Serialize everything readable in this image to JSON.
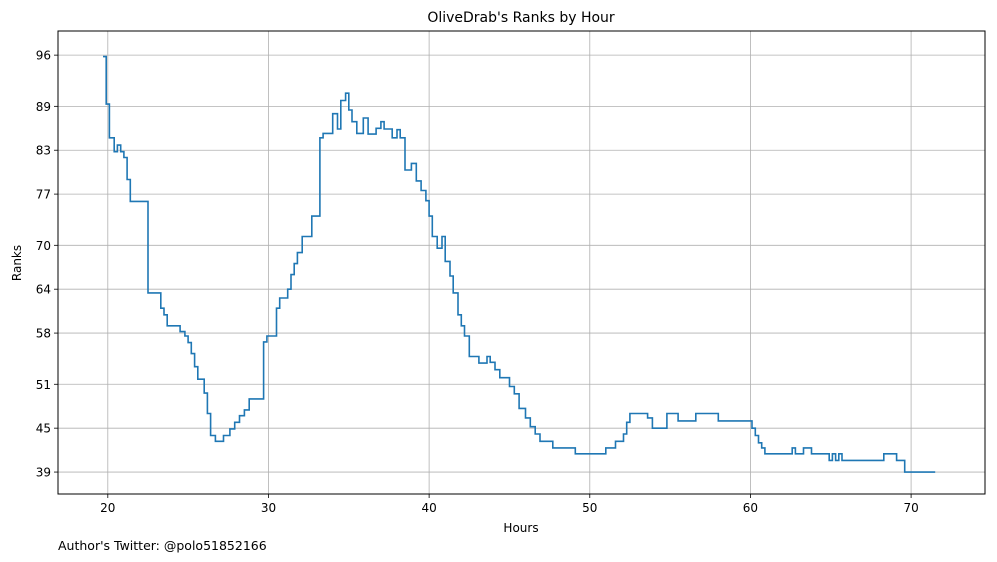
{
  "chart_data": {
    "type": "line",
    "line_style": "steps-post",
    "title": "OliveDrab's Ranks by Hour",
    "xlabel": "Hours",
    "ylabel": "Ranks",
    "xlim": [
      16.9,
      74.6
    ],
    "ylim": [
      99.3,
      36.0
    ],
    "y_inverted": true,
    "grid": true,
    "x_ticks": [
      20,
      30,
      40,
      50,
      60,
      70
    ],
    "y_ticks": [
      39,
      45,
      51,
      58,
      64,
      70,
      77,
      83,
      89,
      96
    ],
    "line_color": "#1f77b4",
    "series": [
      {
        "x": [
          19.7,
          19.9,
          20.1,
          20.4,
          20.6,
          20.8,
          21.0,
          21.2,
          21.4,
          22.2,
          22.5,
          23.3,
          23.5,
          23.7,
          24.5,
          24.8,
          25.0,
          25.2,
          25.4,
          25.6,
          26.0,
          26.2,
          26.4,
          26.7,
          27.2,
          27.6,
          27.9,
          28.2,
          28.5,
          28.8,
          29.7,
          29.9,
          30.5,
          30.7,
          31.2,
          31.4,
          31.6,
          31.8,
          32.1,
          32.7,
          33.2,
          33.4,
          34.0,
          34.3,
          34.5,
          34.8,
          35.0,
          35.2,
          35.5,
          35.9,
          36.2,
          36.7,
          37.0,
          37.2,
          37.7,
          38.0,
          38.2,
          38.5,
          38.9,
          39.2,
          39.5,
          39.8,
          40.0,
          40.2,
          40.5,
          40.8,
          41.0,
          41.3,
          41.5,
          41.8,
          42.0,
          42.2,
          42.5,
          43.1,
          43.6,
          43.8,
          44.1,
          44.4,
          45.0,
          45.3,
          45.6,
          46.0,
          46.3,
          46.6,
          46.9,
          47.7,
          49.1,
          51.0,
          51.6,
          52.1,
          52.3,
          52.5,
          53.6,
          53.9,
          54.8,
          55.5,
          56.6,
          58.0,
          60.1,
          60.3,
          60.5,
          60.7,
          60.9,
          61.1,
          62.6,
          62.8,
          63.3,
          63.8,
          64.9,
          65.1,
          65.3,
          65.5,
          65.7,
          66.0,
          68.3,
          69.1,
          69.6,
          70.5,
          71.5
        ],
        "y": [
          95.8,
          89.3,
          84.7,
          82.8,
          83.7,
          82.8,
          82.0,
          79.0,
          76.0,
          76.0,
          63.5,
          61.4,
          60.5,
          59.0,
          58.2,
          57.6,
          56.7,
          55.2,
          53.4,
          51.7,
          49.8,
          47.0,
          44.0,
          43.2,
          44.0,
          44.9,
          45.8,
          46.7,
          47.5,
          49.0,
          56.8,
          57.6,
          61.4,
          62.8,
          64.0,
          66.0,
          67.5,
          69.0,
          71.2,
          74.0,
          84.7,
          85.3,
          88.0,
          85.9,
          89.8,
          90.8,
          88.5,
          86.9,
          85.3,
          87.4,
          85.2,
          86.0,
          86.9,
          85.9,
          84.7,
          85.8,
          84.7,
          80.3,
          81.2,
          78.8,
          77.5,
          76.1,
          74.0,
          71.2,
          69.6,
          71.2,
          67.8,
          65.8,
          63.5,
          60.5,
          59.0,
          57.6,
          54.8,
          53.9,
          54.8,
          54.0,
          53.0,
          51.9,
          50.7,
          49.7,
          47.7,
          46.4,
          45.2,
          44.2,
          43.2,
          42.3,
          41.5,
          42.3,
          43.2,
          44.2,
          45.8,
          47.0,
          46.4,
          45.0,
          47.0,
          46.0,
          47.0,
          46.0,
          45.0,
          44.0,
          43.0,
          42.3,
          41.5,
          41.5,
          42.3,
          41.5,
          42.3,
          41.5,
          40.6,
          41.5,
          40.6,
          41.5,
          40.6,
          40.6,
          41.5,
          40.6,
          39.0,
          39.0,
          39.0
        ]
      }
    ]
  },
  "footer": {
    "credit": "Author's Twitter: @polo51852166"
  }
}
